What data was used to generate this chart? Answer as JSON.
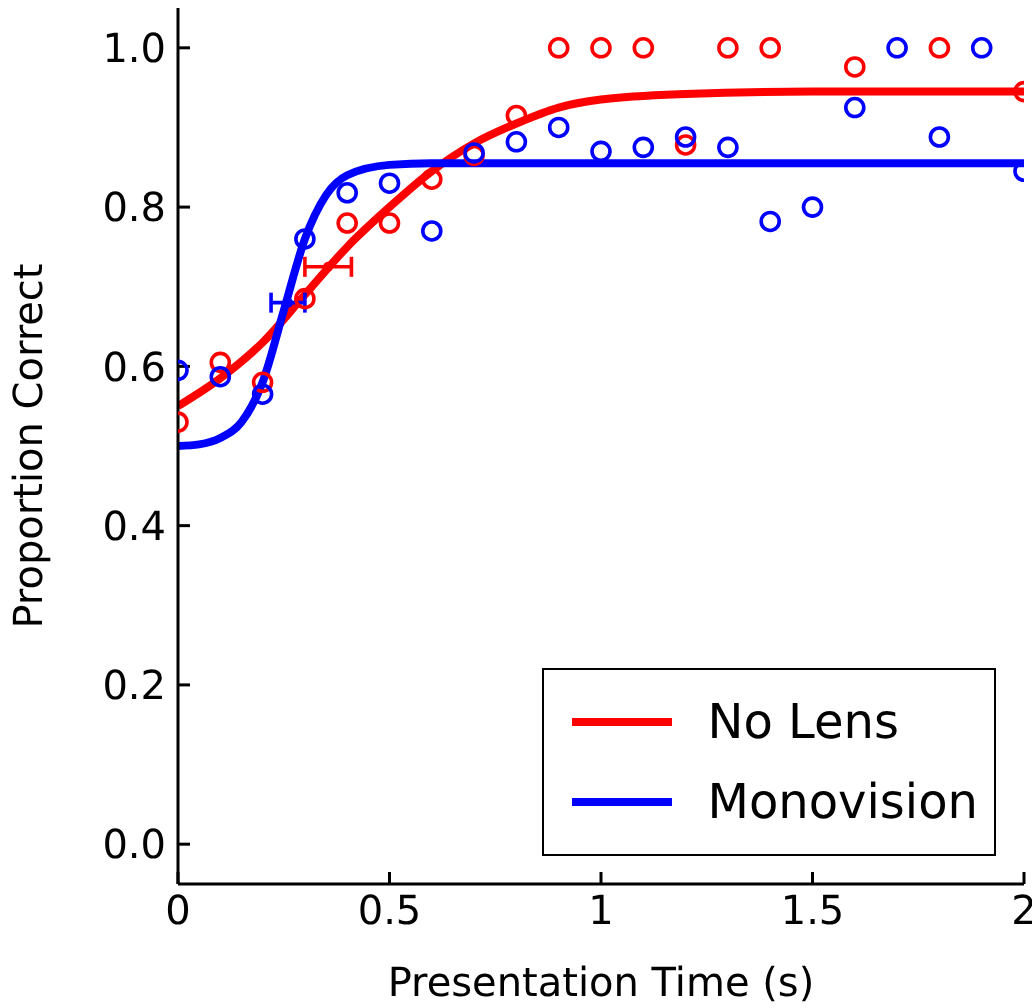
{
  "chart_data": {
    "type": "scatter",
    "xlabel": "Presentation Time (s)",
    "ylabel": "Proportion Correct",
    "xlim": [
      0,
      2
    ],
    "xticks": [
      0,
      0.5,
      1,
      1.5,
      2
    ],
    "ylim": [
      -0.05,
      1.05
    ],
    "yticks": [
      {
        "value": 0,
        "label": "0.0"
      },
      {
        "value": 0.2,
        "label": "0.2"
      },
      {
        "value": 0.4,
        "label": "0.4"
      },
      {
        "value": 0.6,
        "label": "0.6"
      },
      {
        "value": 0.8,
        "label": "0.8"
      },
      {
        "value": 1,
        "label": "1.0"
      }
    ],
    "grid": false,
    "legend": "bottom right",
    "series": [
      {
        "type": "scatter",
        "marker": "circle",
        "color": "#ff0000",
        "x": [
          0,
          0.1,
          0.2,
          0.3,
          0.4,
          0.5,
          0.6,
          0.7,
          0.8,
          0.9,
          1.0,
          1.1,
          1.2,
          1.3,
          1.4,
          1.6,
          1.8,
          2.0
        ],
        "values": [
          0.53,
          0.605,
          0.58,
          0.685,
          0.78,
          0.78,
          0.835,
          0.865,
          0.915,
          1.0,
          1.0,
          1.0,
          0.878,
          1.0,
          1.0,
          0.976,
          1.0,
          0.945
        ]
      },
      {
        "type": "scatter",
        "marker": "circle",
        "color": "#0000ff",
        "x": [
          0,
          0.1,
          0.2,
          0.3,
          0.4,
          0.5,
          0.6,
          0.7,
          0.8,
          0.9,
          1.0,
          1.1,
          1.2,
          1.3,
          1.4,
          1.5,
          1.6,
          1.7,
          1.8,
          1.9,
          2.0
        ],
        "values": [
          0.595,
          0.587,
          0.565,
          0.76,
          0.818,
          0.83,
          0.77,
          0.868,
          0.882,
          0.9,
          0.87,
          0.875,
          0.888,
          0.875,
          0.782,
          0.8,
          0.925,
          1.0,
          0.888,
          1.0,
          0.845
        ]
      },
      {
        "type": "line",
        "name": "No Lens",
        "marker": "none",
        "line_style": "solid",
        "color": "#ff0000",
        "x": [
          0,
          0.1,
          0.2,
          0.3,
          0.4,
          0.5,
          0.6,
          0.7,
          0.8,
          0.9,
          1.0,
          1.2,
          1.5,
          2.0
        ],
        "values": [
          0.55,
          0.585,
          0.63,
          0.69,
          0.75,
          0.8,
          0.845,
          0.88,
          0.905,
          0.925,
          0.935,
          0.942,
          0.945,
          0.945
        ]
      },
      {
        "type": "line",
        "name": "Monovision",
        "marker": "none",
        "line_style": "solid",
        "color": "#0000ff",
        "x": [
          0,
          0.05,
          0.1,
          0.15,
          0.2,
          0.25,
          0.3,
          0.35,
          0.4,
          0.5,
          0.6,
          2.0
        ],
        "values": [
          0.5,
          0.502,
          0.51,
          0.53,
          0.58,
          0.67,
          0.76,
          0.815,
          0.84,
          0.853,
          0.855,
          0.855
        ]
      },
      {
        "type": "scatter",
        "color": "#ff0000",
        "x": [
          0.355
        ],
        "values": [
          0.725
        ],
        "xerrors": [
          [
            0.3,
            0.41
          ]
        ]
      },
      {
        "type": "scatter",
        "color": "#0000ff",
        "x": [
          0.26
        ],
        "values": [
          0.68
        ],
        "xerrors": [
          [
            0.22,
            0.3
          ]
        ]
      }
    ]
  }
}
